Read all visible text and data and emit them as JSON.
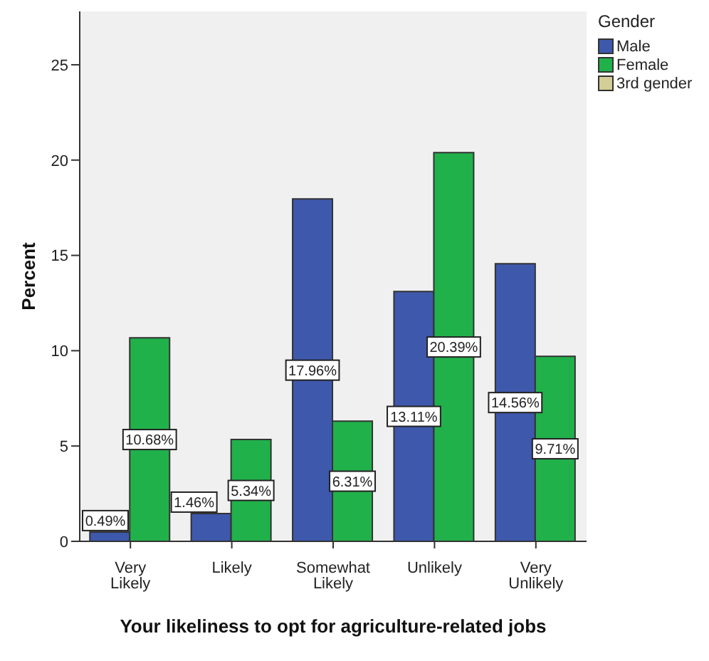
{
  "chart_data": {
    "type": "bar",
    "xlabel": "Your likeliness to opt for agriculture-related jobs",
    "ylabel": "Percent",
    "legend_title": "Gender",
    "legend": "top right",
    "categories": [
      "Very Likely",
      "Likely",
      "Somewhat Likely",
      "Unlikely",
      "Very Unlikely"
    ],
    "series": [
      {
        "name": "Male",
        "color": "#3e58ac",
        "values": [
          0.49,
          1.46,
          17.96,
          13.11,
          14.56
        ],
        "value_labels": [
          "0.49%",
          "1.46%",
          "17.96%",
          "13.11%",
          "14.56%"
        ]
      },
      {
        "name": "Female",
        "color": "#21b14b",
        "values": [
          10.68,
          5.34,
          6.31,
          20.39,
          9.71
        ],
        "value_labels": [
          "10.68%",
          "5.34%",
          "6.31%",
          "20.39%",
          "9.71%"
        ]
      },
      {
        "name": "3rd gender",
        "color": "#d3ce97",
        "values": [
          null,
          null,
          null,
          null,
          null
        ]
      }
    ],
    "ylim": [
      0,
      27.8
    ],
    "yticks": [
      0,
      5,
      10,
      15,
      20,
      25
    ]
  }
}
